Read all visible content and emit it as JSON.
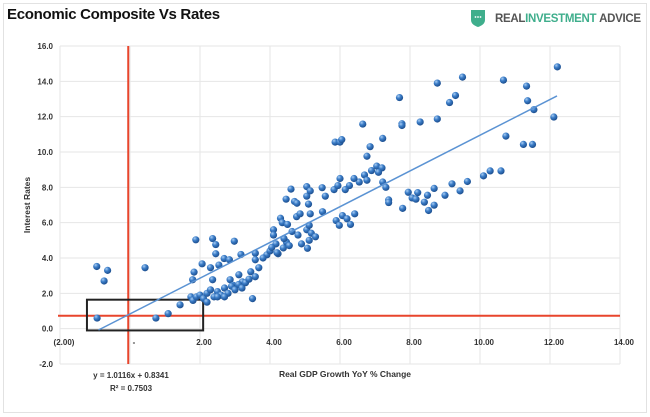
{
  "header": {
    "title": "Economic Composite Vs Rates",
    "logo": {
      "part1": "REAL ",
      "part2": "INVESTMENT ",
      "part3": "ADVICE",
      "icon": "shield-icon",
      "color": "#3fae8c"
    }
  },
  "chart_data": {
    "type": "scatter",
    "xlabel": "Real GDP Growth YoY % Change",
    "ylabel": "Interest Rates",
    "xlim": [
      -2,
      14
    ],
    "ylim": [
      -2,
      16
    ],
    "xticks": [
      {
        "v": -2,
        "label": "(2.00)"
      },
      {
        "v": 0,
        "label": "-"
      },
      {
        "v": 2,
        "label": "2.00"
      },
      {
        "v": 4,
        "label": "4.00"
      },
      {
        "v": 6,
        "label": "6.00"
      },
      {
        "v": 8,
        "label": "8.00"
      },
      {
        "v": 10,
        "label": "10.00"
      },
      {
        "v": 12,
        "label": "12.00"
      },
      {
        "v": 14,
        "label": "14.00"
      }
    ],
    "yticks": [
      {
        "v": 16,
        "label": "16.0"
      },
      {
        "v": 14,
        "label": "14.0"
      },
      {
        "v": 12,
        "label": "12.0"
      },
      {
        "v": 10,
        "label": "10.0"
      },
      {
        "v": 8,
        "label": "8.0"
      },
      {
        "v": 6,
        "label": "6.0"
      },
      {
        "v": 4,
        "label": "4.0"
      },
      {
        "v": 2,
        "label": "2.0"
      },
      {
        "v": 0,
        "label": "0.0"
      },
      {
        "v": -2,
        "label": "-2.0"
      }
    ],
    "grid": true,
    "point_color": "#3b7dc8",
    "trendline": {
      "slope": 1.0116,
      "intercept": 0.8341,
      "x_range": [
        -0.9,
        12.2
      ],
      "color": "#5b93d3",
      "equation": "y = 1.0116x + 0.8341",
      "r2": "R² = 0.7503"
    },
    "reference_lines": {
      "color": "#e8452c",
      "vertical_x": -0.05,
      "horizontal_y": 0.73
    },
    "highlight_box": {
      "x": [
        -1.23,
        2.09
      ],
      "y": [
        -0.1,
        1.64
      ],
      "color": "#222"
    },
    "points": [
      [
        -0.95,
        3.52
      ],
      [
        -0.64,
        3.3
      ],
      [
        -0.74,
        2.7
      ],
      [
        0.43,
        3.45
      ],
      [
        -0.94,
        0.6
      ],
      [
        0.74,
        0.6
      ],
      [
        1.09,
        0.85
      ],
      [
        1.43,
        1.35
      ],
      [
        1.74,
        1.8
      ],
      [
        1.88,
        5.03
      ],
      [
        1.83,
        3.2
      ],
      [
        1.79,
        2.77
      ],
      [
        2.06,
        3.67
      ],
      [
        2.36,
        5.1
      ],
      [
        2.45,
        4.76
      ],
      [
        2.45,
        4.24
      ],
      [
        2.3,
        3.45
      ],
      [
        2.54,
        3.6
      ],
      [
        2.69,
        3.97
      ],
      [
        2.84,
        3.9
      ],
      [
        2.98,
        4.95
      ],
      [
        3.17,
        4.2
      ],
      [
        2.36,
        2.77
      ],
      [
        2.86,
        2.77
      ],
      [
        3.11,
        3.05
      ],
      [
        2.95,
        2.45
      ],
      [
        3.21,
        2.65
      ],
      [
        3.45,
        3.22
      ],
      [
        3.58,
        2.94
      ],
      [
        3.58,
        4.27
      ],
      [
        3.58,
        3.9
      ],
      [
        3.68,
        3.45
      ],
      [
        3.91,
        4.18
      ],
      [
        1.8,
        1.6
      ],
      [
        1.9,
        1.8
      ],
      [
        2.0,
        1.9
      ],
      [
        2.1,
        1.7
      ],
      [
        2.2,
        2.0
      ],
      [
        2.2,
        1.5
      ],
      [
        2.3,
        2.2
      ],
      [
        2.4,
        1.8
      ],
      [
        2.5,
        2.1
      ],
      [
        2.6,
        1.9
      ],
      [
        2.7,
        2.3
      ],
      [
        2.8,
        2.0
      ],
      [
        2.9,
        2.4
      ],
      [
        3.0,
        2.2
      ],
      [
        3.1,
        2.5
      ],
      [
        3.2,
        2.3
      ],
      [
        3.3,
        2.6
      ],
      [
        3.5,
        1.7
      ],
      [
        3.4,
        2.8
      ],
      [
        2.5,
        1.8
      ],
      [
        2.7,
        1.8
      ],
      [
        4.1,
        5.6
      ],
      [
        4.1,
        5.3
      ],
      [
        4.17,
        4.8
      ],
      [
        4.23,
        4.24
      ],
      [
        4.3,
        6.25
      ],
      [
        4.35,
        6.0
      ],
      [
        4.38,
        4.57
      ],
      [
        4.47,
        4.9
      ],
      [
        4.6,
        7.9
      ],
      [
        4.46,
        7.33
      ],
      [
        4.5,
        5.9
      ],
      [
        4.63,
        5.5
      ],
      [
        4.76,
        6.34
      ],
      [
        4.7,
        7.2
      ],
      [
        4.77,
        7.1
      ],
      [
        4.86,
        6.5
      ],
      [
        5.05,
        8.04
      ],
      [
        5.05,
        7.5
      ],
      [
        5.1,
        7.05
      ],
      [
        5.05,
        5.6
      ],
      [
        5.07,
        4.55
      ],
      [
        5.12,
        5.0
      ],
      [
        5.15,
        7.8
      ],
      [
        5.15,
        6.5
      ],
      [
        5.18,
        5.4
      ],
      [
        5.12,
        5.85
      ],
      [
        5.49,
        7.98
      ],
      [
        5.58,
        7.5
      ],
      [
        5.5,
        6.62
      ],
      [
        5.83,
        7.87
      ],
      [
        5.94,
        8.1
      ],
      [
        6.0,
        8.5
      ],
      [
        5.86,
        10.56
      ],
      [
        6.0,
        10.56
      ],
      [
        6.05,
        10.7
      ],
      [
        5.89,
        6.12
      ],
      [
        5.98,
        5.85
      ],
      [
        6.07,
        6.4
      ],
      [
        4.0,
        4.4
      ],
      [
        4.2,
        4.3
      ],
      [
        4.4,
        5.1
      ],
      [
        4.55,
        4.7
      ],
      [
        4.8,
        5.3
      ],
      [
        4.9,
        4.8
      ],
      [
        5.3,
        5.2
      ],
      [
        3.8,
        4.0
      ],
      [
        4.05,
        4.6
      ],
      [
        12.21,
        14.82
      ],
      [
        9.5,
        14.24
      ],
      [
        8.78,
        13.9
      ],
      [
        10.67,
        14.07
      ],
      [
        11.33,
        13.73
      ],
      [
        11.36,
        12.9
      ],
      [
        11.54,
        12.4
      ],
      [
        12.11,
        11.98
      ],
      [
        9.3,
        13.2
      ],
      [
        9.13,
        12.8
      ],
      [
        7.7,
        13.08
      ],
      [
        7.77,
        11.6
      ],
      [
        7.77,
        11.5
      ],
      [
        8.29,
        11.7
      ],
      [
        8.78,
        11.87
      ],
      [
        6.65,
        11.58
      ],
      [
        6.86,
        10.3
      ],
      [
        7.22,
        10.77
      ],
      [
        6.77,
        9.76
      ],
      [
        10.74,
        10.9
      ],
      [
        11.24,
        10.43
      ],
      [
        11.5,
        10.43
      ],
      [
        7.05,
        9.2
      ],
      [
        7.2,
        9.1
      ],
      [
        6.9,
        8.95
      ],
      [
        6.7,
        8.7
      ],
      [
        6.55,
        8.3
      ],
      [
        6.4,
        8.5
      ],
      [
        6.27,
        8.1
      ],
      [
        6.15,
        7.87
      ],
      [
        7.1,
        8.85
      ],
      [
        6.77,
        8.4
      ],
      [
        7.22,
        8.3
      ],
      [
        7.31,
        8.0
      ],
      [
        7.39,
        7.29
      ],
      [
        7.39,
        7.14
      ],
      [
        7.79,
        6.81
      ],
      [
        7.95,
        7.72
      ],
      [
        8.06,
        7.4
      ],
      [
        8.17,
        7.33
      ],
      [
        8.22,
        7.7
      ],
      [
        8.41,
        7.16
      ],
      [
        8.5,
        7.55
      ],
      [
        8.53,
        6.69
      ],
      [
        8.69,
        6.99
      ],
      [
        8.69,
        7.94
      ],
      [
        9.0,
        7.55
      ],
      [
        9.2,
        8.2
      ],
      [
        9.43,
        7.8
      ],
      [
        9.64,
        8.33
      ],
      [
        10.1,
        8.65
      ],
      [
        10.29,
        8.93
      ],
      [
        10.6,
        8.93
      ],
      [
        6.2,
        6.22
      ],
      [
        6.3,
        5.9
      ],
      [
        6.42,
        6.5
      ]
    ]
  }
}
